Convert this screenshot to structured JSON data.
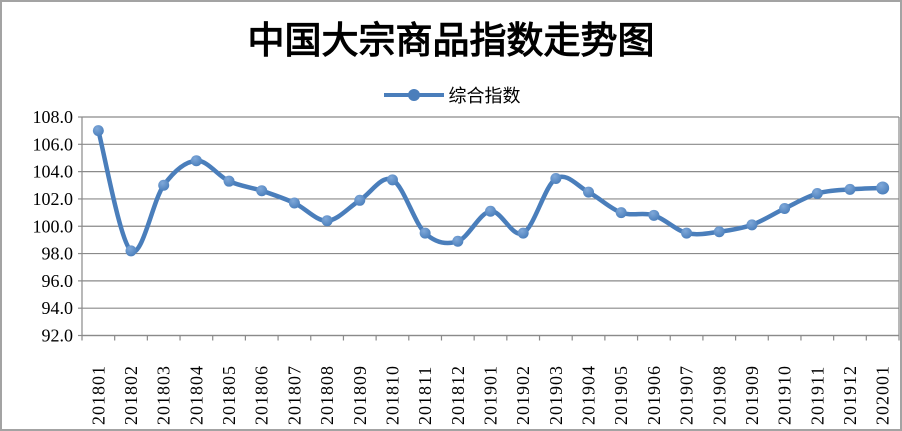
{
  "chart": {
    "title": "中国大宗商品指数走势图",
    "legend_label": "综合指数",
    "colors": {
      "line": "#4a7ebb",
      "marker_fill": "#4a7ebb",
      "marker_highlight": "#7fa8d9",
      "grid": "#8a8a8a",
      "axis": "#8a8a8a",
      "text": "#000000",
      "frame": "#a3a3a3",
      "background": "#ffffff"
    }
  },
  "chart_data": {
    "type": "line",
    "title": "中国大宗商品指数走势图",
    "legend": [
      "综合指数"
    ],
    "legend_position": "top-center",
    "grid": true,
    "smooth": true,
    "marker": "circle",
    "xlabel": "",
    "ylabel": "",
    "ylim": [
      92.0,
      108.0
    ],
    "ytick_step": 2.0,
    "ytick_labels": [
      "108.0",
      "106.0",
      "104.0",
      "102.0",
      "100.0",
      "98.0",
      "96.0",
      "94.0",
      "92.0"
    ],
    "categories": [
      "201801",
      "201802",
      "201803",
      "201804",
      "201805",
      "201806",
      "201807",
      "201808",
      "201809",
      "201810",
      "201811",
      "201812",
      "201901",
      "201902",
      "201903",
      "201904",
      "201905",
      "201906",
      "201907",
      "201908",
      "201909",
      "201910",
      "201911",
      "201912",
      "202001"
    ],
    "series": [
      {
        "name": "综合指数",
        "values": [
          107.0,
          98.2,
          103.0,
          104.8,
          103.3,
          102.6,
          101.7,
          100.4,
          101.9,
          103.4,
          99.5,
          98.9,
          101.1,
          99.5,
          103.5,
          102.5,
          101.0,
          100.8,
          99.5,
          99.6,
          100.1,
          101.3,
          102.4,
          102.7,
          102.8
        ]
      }
    ]
  }
}
